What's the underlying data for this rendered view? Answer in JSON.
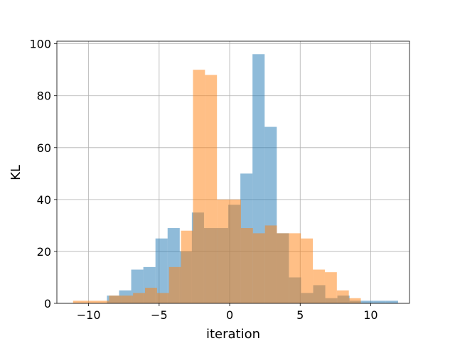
{
  "chart_data": {
    "type": "bar",
    "title": "",
    "xlabel": "iteration",
    "ylabel": "KL",
    "xlim": [
      -12.25,
      12.75
    ],
    "ylim": [
      0,
      101
    ],
    "xticks": [
      -10,
      -5,
      0,
      5,
      10
    ],
    "xtick_labels": [
      "−10",
      "−5",
      "0",
      "5",
      "10"
    ],
    "yticks": [
      0,
      20,
      40,
      60,
      80,
      100
    ],
    "ytick_labels": [
      "0",
      "20",
      "40",
      "60",
      "80",
      "100"
    ],
    "grid": true,
    "legend": "none",
    "series": [
      {
        "color": "#1f77b4",
        "alpha": 0.5,
        "bin_edges": [
          -8.7,
          -7.84,
          -6.98,
          -6.12,
          -5.26,
          -4.4,
          -3.54,
          -2.68,
          -1.82,
          -0.96,
          -0.1,
          0.76,
          1.62,
          2.48,
          3.34,
          4.2,
          5.06,
          5.92,
          6.78,
          7.64,
          8.5,
          9.36,
          10.22,
          11.08,
          11.94
        ],
        "values": [
          3,
          5,
          13,
          14,
          25,
          29,
          20,
          35,
          29,
          29,
          38,
          50,
          96,
          68,
          27,
          10,
          4,
          7,
          2,
          3,
          1,
          1,
          1,
          1
        ]
      },
      {
        "color": "#ff7f0e",
        "alpha": 0.5,
        "bin_edges": [
          -11.1,
          -10.25,
          -9.4,
          -8.55,
          -7.7,
          -6.85,
          -6.0,
          -5.15,
          -4.3,
          -3.45,
          -2.6,
          -1.75,
          -0.9,
          -0.05,
          0.8,
          1.65,
          2.5,
          3.35,
          4.2,
          5.05,
          5.9,
          6.75,
          7.6,
          8.45,
          9.3
        ],
        "values": [
          1,
          1,
          1,
          3,
          3,
          4,
          6,
          4,
          14,
          28,
          90,
          88,
          40,
          40,
          29,
          27,
          30,
          27,
          27,
          25,
          13,
          12,
          5,
          2
        ]
      }
    ]
  }
}
